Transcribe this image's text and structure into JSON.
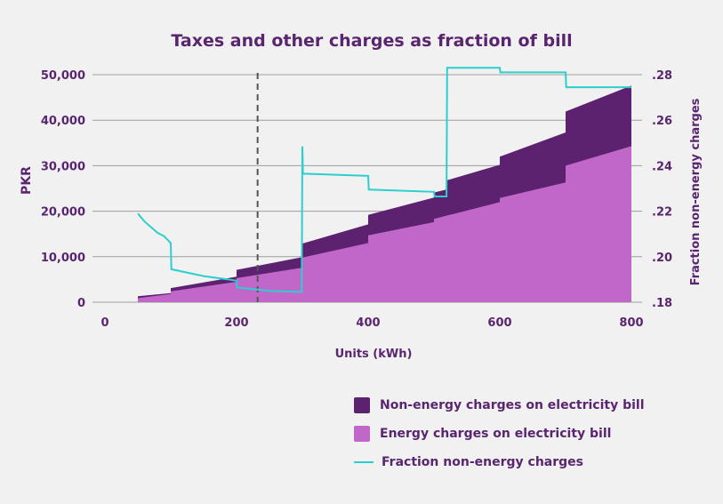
{
  "colors": {
    "non_energy": "#5c2270",
    "energy": "#c067c9",
    "fraction_line": "#2ccfce",
    "text": "#5a2570",
    "grid": "#9e9e9e",
    "reference_line": "#555555",
    "background": "#f1f1f1"
  },
  "legend": {
    "non_energy_label": "Non-energy charges on electricity bill",
    "energy_label": "Energy charges on electricity bill",
    "fraction_label": "Fraction non-energy charges"
  },
  "chart_data": {
    "type": "area",
    "title": "Taxes and other charges as fraction of bill",
    "xlabel": "Units (kWh)",
    "ylabel": "PKR",
    "y2label": "Fraction non-energy charges",
    "xlim": [
      0,
      800
    ],
    "ylim": [
      0,
      50000
    ],
    "y2lim": [
      0.18,
      0.28
    ],
    "xticks": [
      0,
      200,
      400,
      600,
      800
    ],
    "xtick_labels": [
      "0",
      "200",
      "400",
      "600",
      "800"
    ],
    "yticks": [
      0,
      10000,
      20000,
      30000,
      40000,
      50000
    ],
    "ytick_labels": [
      "0",
      "10,000",
      "20,000",
      "30,000",
      "40,000",
      "50,000"
    ],
    "y2ticks": [
      0.18,
      0.2,
      0.22,
      0.24,
      0.26,
      0.28
    ],
    "y2tick_labels": [
      ".18",
      ".20",
      ".22",
      ".24",
      ".26",
      ".28"
    ],
    "grid": "horizontal",
    "reference_line_x": 232,
    "series": [
      {
        "name": "Energy charges on electricity bill",
        "kind": "area",
        "axis": "left",
        "points": [
          [
            50,
            900
          ],
          [
            100,
            1800
          ],
          [
            100.01,
            2400
          ],
          [
            200,
            4500
          ],
          [
            200.01,
            5300
          ],
          [
            300,
            7600
          ],
          [
            300.01,
            9800
          ],
          [
            400,
            13000
          ],
          [
            400.01,
            14700
          ],
          [
            500,
            17600
          ],
          [
            500.01,
            18300
          ],
          [
            600,
            22000
          ],
          [
            600.01,
            22900
          ],
          [
            700,
            26300
          ],
          [
            700.01,
            30000
          ],
          [
            800,
            34300
          ]
        ]
      },
      {
        "name": "Non-energy charges on electricity bill",
        "kind": "stacked_total",
        "axis": "left",
        "points": [
          [
            50,
            1300
          ],
          [
            100,
            2000
          ],
          [
            100.01,
            3100
          ],
          [
            200,
            5600
          ],
          [
            200.01,
            7100
          ],
          [
            300,
            9900
          ],
          [
            300.01,
            12900
          ],
          [
            400,
            17100
          ],
          [
            400.01,
            19200
          ],
          [
            500,
            23000
          ],
          [
            500.01,
            24100
          ],
          [
            520,
            24800
          ],
          [
            520.01,
            26800
          ],
          [
            600,
            30200
          ],
          [
            600.01,
            32000
          ],
          [
            700,
            37300
          ],
          [
            700.01,
            41900
          ],
          [
            800,
            47600
          ]
        ]
      },
      {
        "name": "Fraction non-energy charges",
        "kind": "line",
        "axis": "right",
        "points": [
          [
            50,
            0.219
          ],
          [
            60,
            0.2155
          ],
          [
            70,
            0.213
          ],
          [
            80,
            0.2105
          ],
          [
            90,
            0.209
          ],
          [
            100,
            0.206
          ],
          [
            101,
            0.1945
          ],
          [
            150,
            0.1915
          ],
          [
            200,
            0.1895
          ],
          [
            201,
            0.1865
          ],
          [
            250,
            0.185
          ],
          [
            299,
            0.1845
          ],
          [
            300,
            0.2485
          ],
          [
            301,
            0.2365
          ],
          [
            400,
            0.2355
          ],
          [
            401,
            0.2295
          ],
          [
            500,
            0.2285
          ],
          [
            501,
            0.2265
          ],
          [
            519,
            0.2265
          ],
          [
            520,
            0.283
          ],
          [
            600,
            0.283
          ],
          [
            601,
            0.281
          ],
          [
            700,
            0.281
          ],
          [
            701,
            0.2745
          ],
          [
            800,
            0.2745
          ]
        ]
      }
    ]
  }
}
